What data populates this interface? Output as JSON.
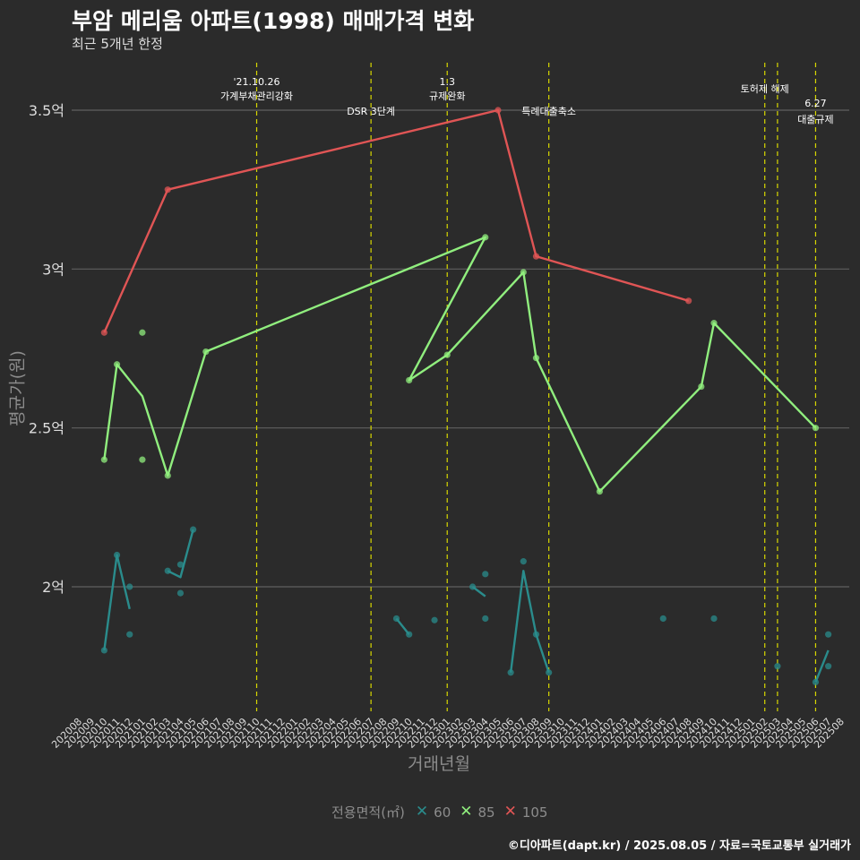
{
  "chart_data": {
    "type": "line",
    "title": "부암 메리움 아파트(1998) 매매가격 변화",
    "subtitle": "최근 5개년 한정",
    "xlabel": "거래년월",
    "ylabel": "평균가(원)",
    "legend_title": "전용면적(㎡)",
    "legend_position": "bottom",
    "caption": "©디아파트(dapt.kr) / 2025.08.05 / 자료=국토교통부 실거래가",
    "grid": true,
    "ylim": [
      1.6,
      3.65
    ],
    "y_ticks": [
      2.0,
      2.5,
      3.0,
      3.5
    ],
    "y_tick_labels": [
      "2억",
      "2.5억",
      "3억",
      "3.5억"
    ],
    "x_ticks": [
      "202008",
      "202009",
      "202010",
      "202011",
      "202012",
      "202101",
      "202102",
      "202103",
      "202104",
      "202105",
      "202106",
      "202107",
      "202108",
      "202109",
      "202110",
      "202111",
      "202112",
      "202201",
      "202202",
      "202203",
      "202204",
      "202205",
      "202206",
      "202207",
      "202208",
      "202209",
      "202210",
      "202211",
      "202212",
      "202301",
      "202302",
      "202303",
      "202304",
      "202305",
      "202306",
      "202307",
      "202308",
      "202309",
      "202310",
      "202311",
      "202312",
      "202401",
      "202402",
      "202403",
      "202404",
      "202405",
      "202406",
      "202407",
      "202408",
      "202409",
      "202410",
      "202411",
      "202412",
      "202501",
      "202502",
      "202503",
      "202504",
      "202505",
      "202506",
      "202507",
      "202508"
    ],
    "series": [
      {
        "name": "60",
        "color": "#2a8c8c",
        "line": [
          [
            "202010",
            1.8
          ],
          [
            "202011",
            2.1
          ],
          [
            "202012",
            1.93
          ],
          null,
          [
            "202103",
            2.05
          ],
          [
            "202104",
            2.03
          ],
          [
            "202105",
            2.18
          ],
          null,
          [
            "202303",
            2.0
          ],
          [
            "202304",
            1.97
          ],
          null,
          [
            "202209",
            1.9
          ],
          [
            "202210",
            1.85
          ],
          null,
          [
            "202306",
            1.73
          ],
          [
            "202307",
            2.05
          ],
          [
            "202308",
            1.85
          ],
          [
            "202309",
            1.73
          ],
          null,
          [
            "202506",
            1.7
          ],
          [
            "202507",
            1.8
          ]
        ],
        "points": [
          [
            "202010",
            1.8
          ],
          [
            "202011",
            2.1
          ],
          [
            "202012",
            2.0
          ],
          [
            "202012",
            1.85
          ],
          [
            "202103",
            2.05
          ],
          [
            "202104",
            2.07
          ],
          [
            "202104",
            1.98
          ],
          [
            "202105",
            2.18
          ],
          [
            "202303",
            2.0
          ],
          [
            "202304",
            2.04
          ],
          [
            "202304",
            1.9
          ],
          [
            "202209",
            1.9
          ],
          [
            "202210",
            1.85
          ],
          [
            "202212",
            1.895
          ],
          [
            "202306",
            1.73
          ],
          [
            "202307",
            2.08
          ],
          [
            "202308",
            1.85
          ],
          [
            "202309",
            1.73
          ],
          [
            "202406",
            1.9
          ],
          [
            "202410",
            1.9
          ],
          [
            "202503",
            1.75
          ],
          [
            "202506",
            1.7
          ],
          [
            "202507",
            1.85
          ],
          [
            "202507",
            1.75
          ]
        ]
      },
      {
        "name": "85",
        "color": "#90ee7e",
        "line": [
          [
            "202010",
            2.4
          ],
          [
            "202011",
            2.7
          ],
          [
            "202101",
            2.6
          ],
          [
            "202103",
            2.35
          ],
          [
            "202106",
            2.74
          ],
          [
            "202304",
            3.1
          ],
          [
            "202210",
            2.65
          ],
          [
            "202301",
            2.73
          ],
          [
            "202307",
            2.99
          ],
          [
            "202308",
            2.72
          ],
          [
            "202401",
            2.3
          ],
          [
            "202409",
            2.63
          ],
          [
            "202410",
            2.83
          ],
          [
            "202506",
            2.5
          ]
        ],
        "points": [
          [
            "202010",
            2.4
          ],
          [
            "202011",
            2.7
          ],
          [
            "202101",
            2.8
          ],
          [
            "202101",
            2.4
          ],
          [
            "202103",
            2.35
          ],
          [
            "202106",
            2.74
          ],
          [
            "202304",
            3.1
          ],
          [
            "202210",
            2.65
          ],
          [
            "202301",
            2.73
          ],
          [
            "202307",
            2.99
          ],
          [
            "202308",
            2.72
          ],
          [
            "202401",
            2.3
          ],
          [
            "202409",
            2.63
          ],
          [
            "202410",
            2.83
          ],
          [
            "202506",
            2.5
          ]
        ]
      },
      {
        "name": "105",
        "color": "#e05555",
        "line": [
          [
            "202010",
            2.8
          ],
          [
            "202103",
            3.25
          ],
          [
            "202305",
            3.5
          ],
          [
            "202308",
            3.04
          ],
          [
            "202408",
            2.9
          ]
        ],
        "points": [
          [
            "202010",
            2.8
          ],
          [
            "202103",
            3.25
          ],
          [
            "202305",
            3.5
          ],
          [
            "202308",
            3.04
          ],
          [
            "202408",
            2.9
          ]
        ]
      }
    ],
    "events": [
      {
        "month": "202110",
        "label1": "'21.10.26",
        "label2": "가계부채관리강화"
      },
      {
        "month": "202207",
        "label1": "",
        "label2": "DSR 3단계"
      },
      {
        "month": "202301",
        "label1": "1.3",
        "label2": "규제완화"
      },
      {
        "month": "202309",
        "label1": "",
        "label2": "특례대출축소"
      },
      {
        "month": "202502",
        "label1": "",
        "label2": "토허제 해제"
      },
      {
        "month": "202503",
        "label1": "",
        "label2": ""
      },
      {
        "month": "202506",
        "label1": "6.27",
        "label2": "대출규제"
      }
    ]
  }
}
